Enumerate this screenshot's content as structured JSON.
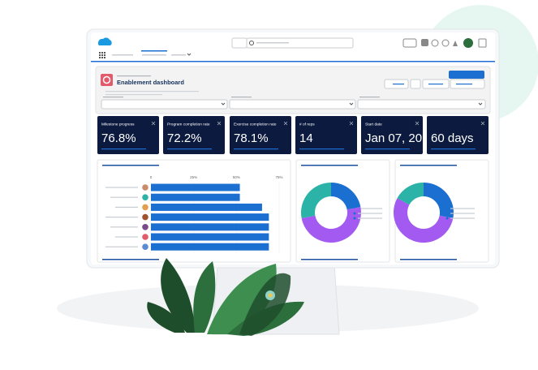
{
  "header": {
    "title": "Enablement dashboard"
  },
  "metrics": [
    {
      "label": "Milestone progress",
      "value": "76.8%"
    },
    {
      "label": "Program completion rate",
      "value": "72.2%"
    },
    {
      "label": "Exercise completion rate",
      "value": "78.1%"
    },
    {
      "label": "# of reps",
      "value": "14"
    },
    {
      "label": "Start date",
      "value": "Jan 07, 20.."
    },
    {
      "value": "60 days"
    }
  ],
  "bar_chart": {
    "type": "bar",
    "orientation": "horizontal",
    "color": "#1b6fd1",
    "values": [
      52,
      52,
      65,
      69,
      69,
      69,
      69
    ],
    "xlim": [
      0,
      75
    ],
    "xticks": [
      0,
      {
        "value": 25,
        "label": "25%"
      },
      {
        "value": 50,
        "label": "50%"
      },
      {
        "value": 75,
        "label": "75%"
      }
    ]
  },
  "donuts": [
    {
      "type": "pie",
      "colors": [
        "#1b6fd1",
        "#a25af0",
        "#2bb3a7"
      ],
      "values": [
        22,
        50,
        28
      ]
    },
    {
      "type": "pie",
      "colors": [
        "#1b6fd1",
        "#a25af0",
        "#2bb3a7"
      ],
      "values": [
        28,
        55,
        17
      ]
    }
  ]
}
